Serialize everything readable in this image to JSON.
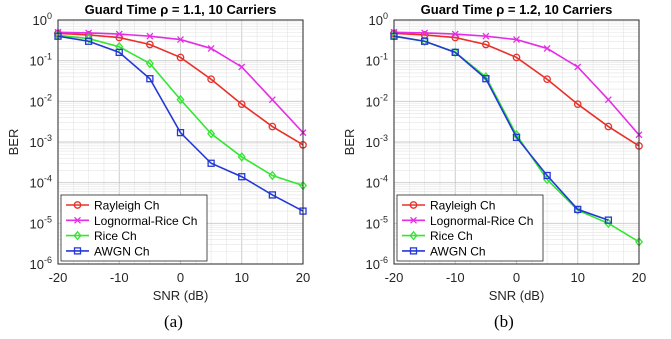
{
  "captions": [
    "(a)",
    "(b)"
  ],
  "chart_data": [
    {
      "type": "line",
      "title": "Guard Time ρ = 1.1, 10 Carriers",
      "xlabel": "SNR (dB)",
      "ylabel": "BER",
      "xlim": [
        -20,
        20
      ],
      "ylim": [
        1e-06,
        1
      ],
      "yscale": "log",
      "xticks": [
        "-20",
        "-10",
        "0",
        "10",
        "20"
      ],
      "yticks": [
        "10^-6",
        "10^-5",
        "10^-4",
        "10^-3",
        "10^-2",
        "10^-1",
        "10^0"
      ],
      "grid": true,
      "legend_position": "bottom-left",
      "series": [
        {
          "name": "Rayleigh Ch",
          "color": "#e8302a",
          "marker": "circle",
          "x": [
            -20,
            -15,
            -10,
            -5,
            0,
            5,
            10,
            15,
            20
          ],
          "y": [
            0.47,
            0.43,
            0.37,
            0.25,
            0.12,
            0.035,
            0.0085,
            0.0024,
            0.00085
          ]
        },
        {
          "name": "Lognormal-Rice Ch",
          "color": "#e62de6",
          "marker": "x",
          "x": [
            -20,
            -15,
            -10,
            -5,
            0,
            5,
            10,
            15,
            20
          ],
          "y": [
            0.5,
            0.48,
            0.45,
            0.4,
            0.33,
            0.2,
            0.07,
            0.011,
            0.0017
          ]
        },
        {
          "name": "Rice Ch",
          "color": "#33e633",
          "marker": "diamond",
          "x": [
            -20,
            -15,
            -10,
            -5,
            0,
            5,
            10,
            15,
            20
          ],
          "y": [
            0.42,
            0.35,
            0.22,
            0.085,
            0.011,
            0.0016,
            0.00043,
            0.00015,
            8.5e-05
          ]
        },
        {
          "name": "AWGN Ch",
          "color": "#2438d6",
          "marker": "square",
          "x": [
            -20,
            -15,
            -10,
            -5,
            0,
            5,
            10,
            15,
            20
          ],
          "y": [
            0.4,
            0.3,
            0.16,
            0.036,
            0.0017,
            0.0003,
            0.00014,
            5e-05,
            2e-05
          ]
        }
      ]
    },
    {
      "type": "line",
      "title": "Guard Time ρ = 1.2, 10 Carriers",
      "xlabel": "SNR (dB)",
      "ylabel": "BER",
      "xlim": [
        -20,
        20
      ],
      "ylim": [
        1e-06,
        1
      ],
      "yscale": "log",
      "xticks": [
        "-20",
        "-10",
        "0",
        "10",
        "20"
      ],
      "yticks": [
        "10^-6",
        "10^-5",
        "10^-4",
        "10^-3",
        "10^-2",
        "10^-1",
        "10^0"
      ],
      "grid": true,
      "legend_position": "bottom-left",
      "series": [
        {
          "name": "Rayleigh Ch",
          "color": "#e8302a",
          "marker": "circle",
          "x": [
            -20,
            -15,
            -10,
            -5,
            0,
            5,
            10,
            15,
            20
          ],
          "y": [
            0.47,
            0.43,
            0.37,
            0.25,
            0.12,
            0.035,
            0.0085,
            0.0024,
            0.0008
          ]
        },
        {
          "name": "Lognormal-Rice Ch",
          "color": "#e62de6",
          "marker": "x",
          "x": [
            -20,
            -15,
            -10,
            -5,
            0,
            5,
            10,
            15,
            20
          ],
          "y": [
            0.5,
            0.48,
            0.45,
            0.4,
            0.33,
            0.2,
            0.07,
            0.011,
            0.0015
          ]
        },
        {
          "name": "Rice Ch",
          "color": "#33e633",
          "marker": "diamond",
          "x": [
            -20,
            -15,
            -10,
            -5,
            0,
            5,
            10,
            15,
            20
          ],
          "y": [
            0.4,
            0.3,
            0.16,
            0.04,
            0.0015,
            0.00012,
            2.1e-05,
            1e-05,
            3.5e-06
          ]
        },
        {
          "name": "AWGN Ch",
          "color": "#2438d6",
          "marker": "square",
          "x": [
            -20,
            -15,
            -10,
            -5,
            0,
            5,
            10,
            15
          ],
          "y": [
            0.4,
            0.3,
            0.16,
            0.036,
            0.0013,
            0.00015,
            2.2e-05,
            1.2e-05
          ]
        }
      ]
    }
  ]
}
